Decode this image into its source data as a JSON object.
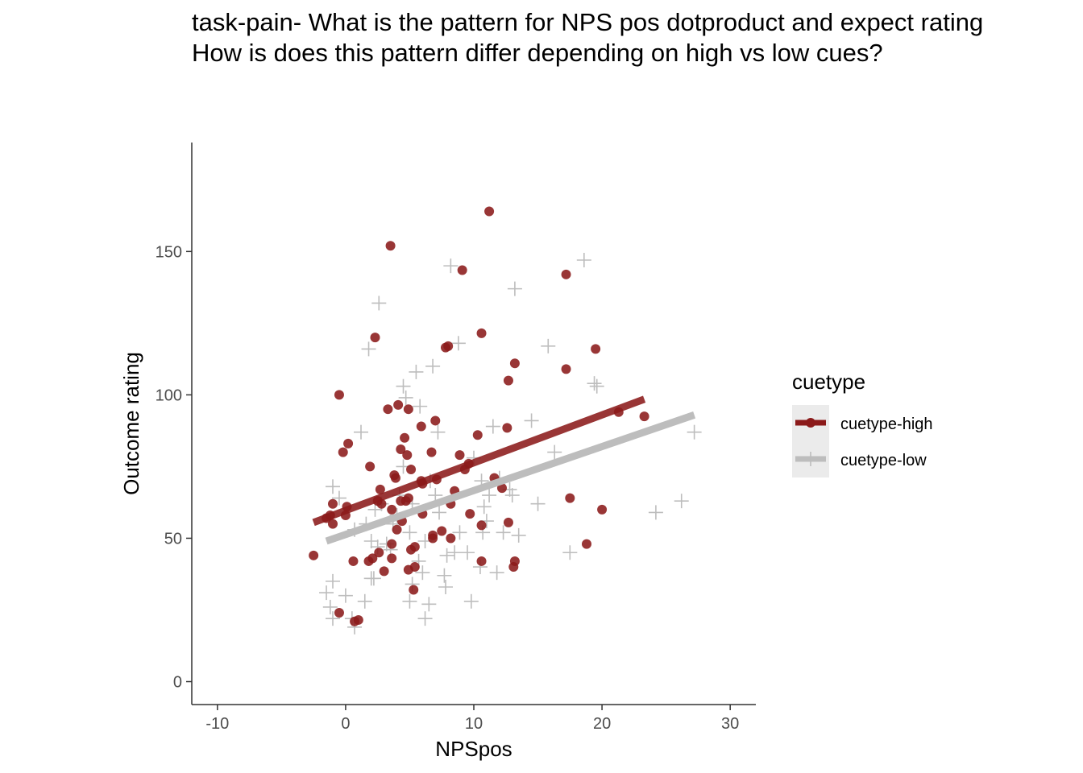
{
  "chart_data": {
    "type": "scatter",
    "title": "task-pain- What is the pattern for NPS pos dotproduct and expect rating",
    "subtitle": "How is does this pattern differ depending on high vs low cues?",
    "xlabel": "NPSpos",
    "ylabel": "Outcome rating",
    "xlim": [
      -12,
      32
    ],
    "ylim": [
      -8,
      188
    ],
    "x_ticks": [
      "-10",
      "0",
      "10",
      "20",
      "30"
    ],
    "y_ticks": [
      "0",
      "50",
      "100",
      "150"
    ],
    "grid": false,
    "legend": {
      "title": "cuetype",
      "position": "right",
      "entries": [
        "cuetype-high",
        "cuetype-low"
      ]
    },
    "colors": {
      "cuetype-high": "#8b1a1a",
      "cuetype-low": "#bdbdbd"
    },
    "series": [
      {
        "name": "cuetype-high",
        "marker": "circle",
        "trend": {
          "x": [
            -2.5,
            23.3
          ],
          "y": [
            55.5,
            98.5
          ]
        },
        "points": [
          [
            -2.5,
            44
          ],
          [
            -1.5,
            57
          ],
          [
            -1.2,
            58
          ],
          [
            -1.0,
            55
          ],
          [
            -1.0,
            62
          ],
          [
            -0.5,
            24
          ],
          [
            -0.5,
            100
          ],
          [
            -0.2,
            80
          ],
          [
            0.0,
            58
          ],
          [
            0.1,
            61
          ],
          [
            0.2,
            83
          ],
          [
            0.6,
            42
          ],
          [
            0.7,
            21
          ],
          [
            1.0,
            21.5
          ],
          [
            1.9,
            75
          ],
          [
            1.8,
            42
          ],
          [
            2.1,
            43
          ],
          [
            2.3,
            120
          ],
          [
            2.5,
            63
          ],
          [
            2.6,
            45
          ],
          [
            2.7,
            67
          ],
          [
            2.8,
            62
          ],
          [
            3.0,
            38.5
          ],
          [
            3.3,
            95
          ],
          [
            3.5,
            152
          ],
          [
            3.6,
            43
          ],
          [
            3.6,
            48
          ],
          [
            3.6,
            60
          ],
          [
            3.8,
            72
          ],
          [
            3.9,
            71
          ],
          [
            4.0,
            53
          ],
          [
            4.1,
            96.5
          ],
          [
            4.3,
            81
          ],
          [
            4.3,
            63
          ],
          [
            4.4,
            56
          ],
          [
            4.6,
            85
          ],
          [
            4.7,
            63
          ],
          [
            4.8,
            79
          ],
          [
            4.9,
            95
          ],
          [
            4.9,
            64
          ],
          [
            4.9,
            39
          ],
          [
            5.1,
            74
          ],
          [
            5.1,
            46
          ],
          [
            5.3,
            32
          ],
          [
            5.4,
            47
          ],
          [
            5.4,
            40
          ],
          [
            5.9,
            89
          ],
          [
            5.9,
            70
          ],
          [
            6.0,
            69
          ],
          [
            6.0,
            58.5
          ],
          [
            6.7,
            80
          ],
          [
            6.8,
            51
          ],
          [
            6.8,
            50
          ],
          [
            7.0,
            91
          ],
          [
            7.1,
            70.5
          ],
          [
            7.5,
            52.5
          ],
          [
            7.8,
            116.5
          ],
          [
            8.0,
            117
          ],
          [
            8.2,
            62
          ],
          [
            8.2,
            50
          ],
          [
            8.5,
            66.5
          ],
          [
            8.9,
            79
          ],
          [
            9.1,
            143.5
          ],
          [
            9.3,
            74
          ],
          [
            9.6,
            76
          ],
          [
            9.7,
            58.5
          ],
          [
            10.3,
            86
          ],
          [
            10.6,
            121.5
          ],
          [
            10.6,
            54.5
          ],
          [
            10.6,
            42
          ],
          [
            11.2,
            164
          ],
          [
            11.6,
            71
          ],
          [
            12.2,
            67.5
          ],
          [
            12.6,
            88.5
          ],
          [
            12.7,
            105
          ],
          [
            12.7,
            55.5
          ],
          [
            13.1,
            40
          ],
          [
            13.2,
            42
          ],
          [
            13.2,
            111
          ],
          [
            17.2,
            142
          ],
          [
            17.2,
            109
          ],
          [
            17.5,
            64
          ],
          [
            18.8,
            48
          ],
          [
            19.5,
            116
          ],
          [
            20.0,
            60
          ],
          [
            21.3,
            94
          ],
          [
            23.3,
            92.5
          ]
        ]
      },
      {
        "name": "cuetype-low",
        "marker": "plus",
        "trend": {
          "x": [
            -1.5,
            27.2
          ],
          "y": [
            49,
            93
          ]
        },
        "points": [
          [
            -1.5,
            31
          ],
          [
            -1.2,
            26
          ],
          [
            -1.0,
            35
          ],
          [
            -1.0,
            22
          ],
          [
            -1.0,
            68
          ],
          [
            -0.5,
            64
          ],
          [
            0.0,
            30
          ],
          [
            0.5,
            22
          ],
          [
            0.7,
            19
          ],
          [
            0.7,
            53
          ],
          [
            1.2,
            87
          ],
          [
            1.5,
            28
          ],
          [
            1.6,
            55
          ],
          [
            1.8,
            116
          ],
          [
            2.0,
            36
          ],
          [
            2.0,
            49
          ],
          [
            2.2,
            36
          ],
          [
            2.3,
            60
          ],
          [
            2.5,
            47
          ],
          [
            2.6,
            132
          ],
          [
            2.8,
            62
          ],
          [
            3.2,
            48
          ],
          [
            3.5,
            46
          ],
          [
            3.7,
            55
          ],
          [
            4.0,
            58
          ],
          [
            4.2,
            65
          ],
          [
            4.5,
            75
          ],
          [
            4.5,
            103
          ],
          [
            4.7,
            99
          ],
          [
            5.0,
            52
          ],
          [
            5.0,
            28
          ],
          [
            5.2,
            34
          ],
          [
            5.2,
            62
          ],
          [
            5.5,
            108
          ],
          [
            5.7,
            42
          ],
          [
            5.8,
            96
          ],
          [
            6.0,
            38
          ],
          [
            6.2,
            22
          ],
          [
            6.2,
            49
          ],
          [
            6.5,
            27
          ],
          [
            6.6,
            70
          ],
          [
            6.8,
            110
          ],
          [
            7.0,
            65
          ],
          [
            7.2,
            87
          ],
          [
            7.3,
            59
          ],
          [
            7.7,
            37
          ],
          [
            7.8,
            33
          ],
          [
            7.9,
            44
          ],
          [
            8.2,
            145
          ],
          [
            8.5,
            45
          ],
          [
            8.8,
            118
          ],
          [
            8.9,
            52
          ],
          [
            9.5,
            45
          ],
          [
            9.8,
            28
          ],
          [
            10.0,
            78
          ],
          [
            10.5,
            40
          ],
          [
            10.6,
            70
          ],
          [
            10.7,
            52
          ],
          [
            10.8,
            61
          ],
          [
            11.0,
            56
          ],
          [
            11.2,
            65
          ],
          [
            11.5,
            89
          ],
          [
            11.8,
            38
          ],
          [
            12.0,
            71
          ],
          [
            12.3,
            52
          ],
          [
            12.8,
            67
          ],
          [
            13.0,
            65
          ],
          [
            13.2,
            137
          ],
          [
            13.5,
            51
          ],
          [
            14.5,
            91
          ],
          [
            15.0,
            62
          ],
          [
            15.8,
            117
          ],
          [
            16.3,
            80
          ],
          [
            17.5,
            45
          ],
          [
            18.6,
            147
          ],
          [
            19.4,
            104
          ],
          [
            19.6,
            103
          ],
          [
            24.2,
            59
          ],
          [
            26.2,
            63
          ],
          [
            27.2,
            87
          ]
        ]
      }
    ]
  }
}
